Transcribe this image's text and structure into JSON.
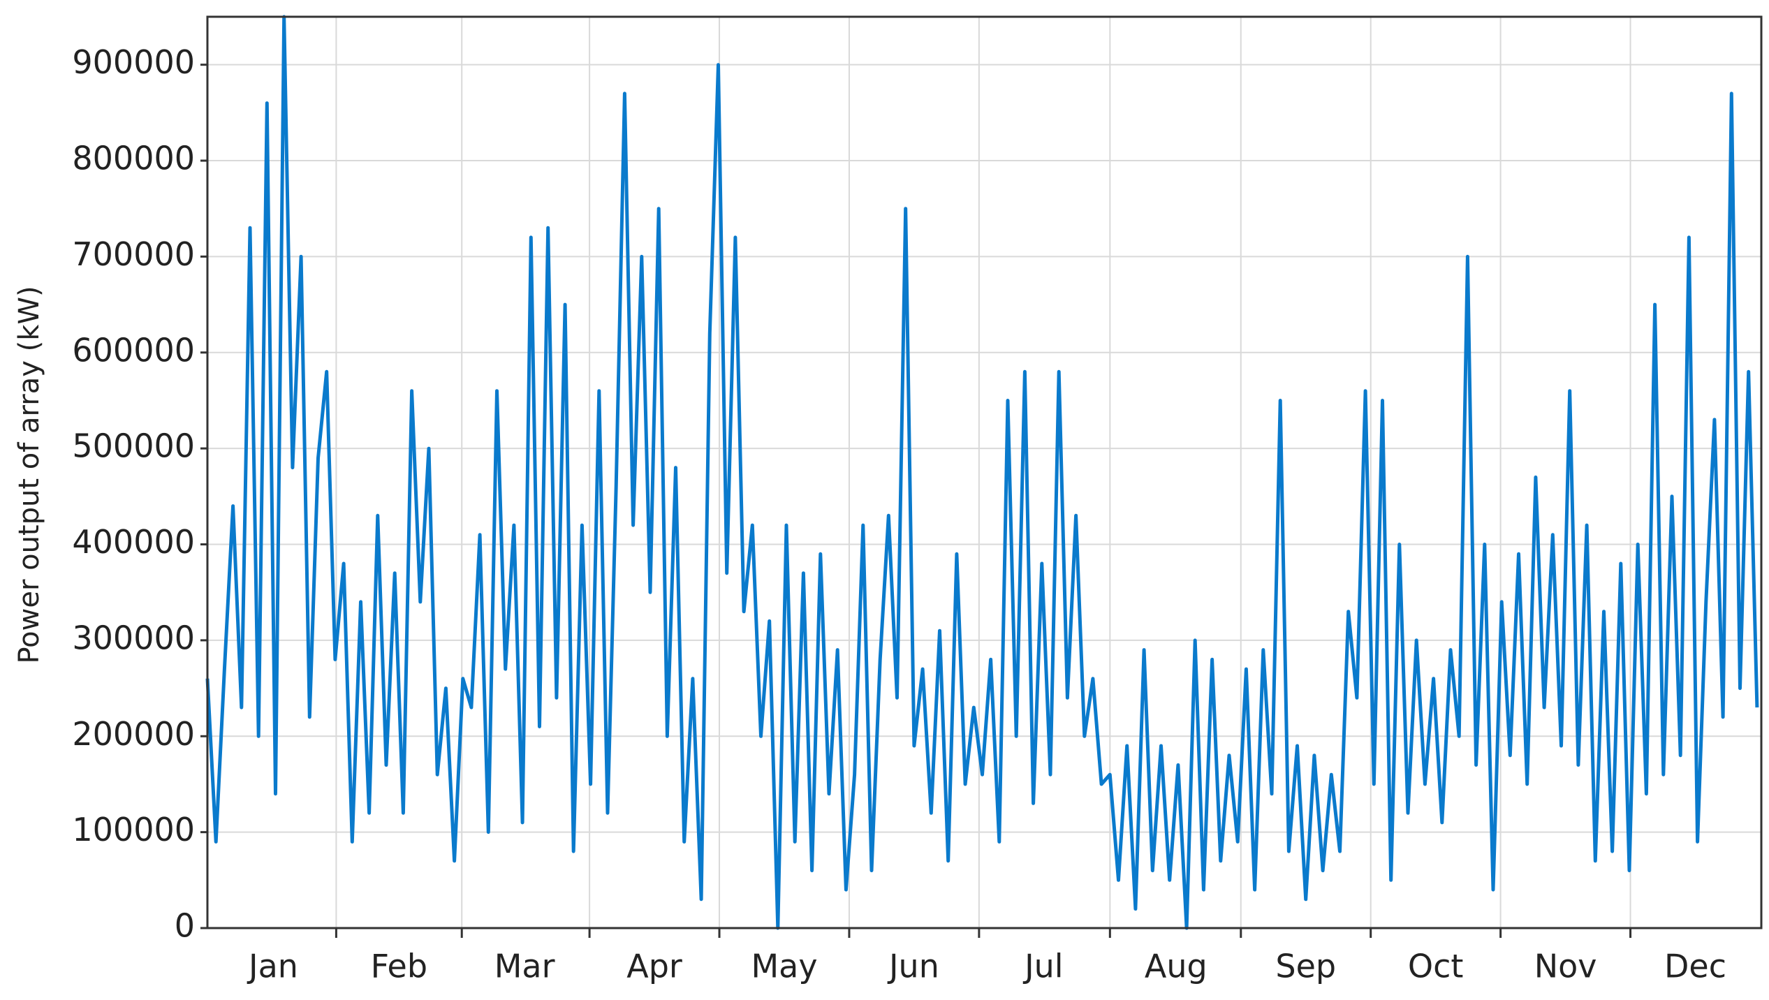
{
  "chart_data": {
    "type": "line",
    "ylabel": "Power output of array (kW)",
    "xlim": [
      0,
      365
    ],
    "xticks": [
      {
        "value": 15.5,
        "label": "Jan"
      },
      {
        "value": 45,
        "label": "Feb"
      },
      {
        "value": 74.5,
        "label": "Mar"
      },
      {
        "value": 105,
        "label": "Apr"
      },
      {
        "value": 135.5,
        "label": "May"
      },
      {
        "value": 166,
        "label": "Jun"
      },
      {
        "value": 196.5,
        "label": "Jul"
      },
      {
        "value": 227.5,
        "label": "Aug"
      },
      {
        "value": 258,
        "label": "Sep"
      },
      {
        "value": 288.5,
        "label": "Oct"
      },
      {
        "value": 319,
        "label": "Nov"
      },
      {
        "value": 349.5,
        "label": "Dec"
      }
    ],
    "ylim": [
      0,
      950000
    ],
    "yticks": [
      0,
      100000,
      200000,
      300000,
      400000,
      500000,
      600000,
      700000,
      800000,
      900000
    ],
    "grid": true,
    "x": [
      0,
      2,
      4,
      6,
      8,
      10,
      12,
      14,
      16,
      18,
      20,
      22,
      24,
      26,
      28,
      30,
      32,
      34,
      36,
      38,
      40,
      42,
      44,
      46,
      48,
      50,
      52,
      54,
      56,
      58,
      60,
      62,
      64,
      66,
      68,
      70,
      72,
      74,
      76,
      78,
      80,
      82,
      84,
      86,
      88,
      90,
      92,
      94,
      96,
      98,
      100,
      102,
      104,
      106,
      108,
      110,
      112,
      114,
      116,
      118,
      120,
      122,
      124,
      126,
      128,
      130,
      132,
      134,
      136,
      138,
      140,
      142,
      144,
      146,
      148,
      150,
      152,
      154,
      156,
      158,
      160,
      162,
      164,
      166,
      168,
      170,
      172,
      174,
      176,
      178,
      180,
      182,
      184,
      186,
      188,
      190,
      192,
      194,
      196,
      198,
      200,
      202,
      204,
      206,
      208,
      210,
      212,
      214,
      216,
      218,
      220,
      222,
      224,
      226,
      228,
      230,
      232,
      234,
      236,
      238,
      240,
      242,
      244,
      246,
      248,
      250,
      252,
      254,
      256,
      258,
      260,
      262,
      264,
      266,
      268,
      270,
      272,
      274,
      276,
      278,
      280,
      282,
      284,
      286,
      288,
      290,
      292,
      294,
      296,
      298,
      300,
      302,
      304,
      306,
      308,
      310,
      312,
      314,
      316,
      318,
      320,
      322,
      324,
      326,
      328,
      330,
      332,
      334,
      336,
      338,
      340,
      342,
      344,
      346,
      348,
      350,
      352,
      354,
      356,
      358,
      360,
      362,
      364
    ],
    "series": [
      {
        "color": "#0a7acc",
        "values": [
          260000,
          90000,
          270000,
          440000,
          230000,
          730000,
          200000,
          860000,
          140000,
          950000,
          480000,
          700000,
          220000,
          490000,
          580000,
          280000,
          380000,
          90000,
          340000,
          120000,
          430000,
          170000,
          370000,
          120000,
          560000,
          340000,
          500000,
          160000,
          250000,
          70000,
          260000,
          230000,
          410000,
          100000,
          560000,
          270000,
          420000,
          110000,
          720000,
          210000,
          730000,
          240000,
          650000,
          80000,
          420000,
          150000,
          560000,
          120000,
          460000,
          870000,
          420000,
          700000,
          350000,
          750000,
          200000,
          480000,
          90000,
          260000,
          30000,
          620000,
          900000,
          370000,
          720000,
          330000,
          420000,
          200000,
          320000,
          0,
          420000,
          90000,
          370000,
          60000,
          390000,
          140000,
          290000,
          40000,
          160000,
          420000,
          60000,
          280000,
          430000,
          240000,
          750000,
          190000,
          270000,
          120000,
          310000,
          70000,
          390000,
          150000,
          230000,
          160000,
          280000,
          90000,
          550000,
          200000,
          580000,
          130000,
          380000,
          160000,
          580000,
          240000,
          430000,
          200000,
          260000,
          150000,
          160000,
          50000,
          190000,
          20000,
          290000,
          60000,
          190000,
          50000,
          170000,
          0,
          300000,
          40000,
          280000,
          70000,
          180000,
          90000,
          270000,
          40000,
          290000,
          140000,
          550000,
          80000,
          190000,
          30000,
          180000,
          60000,
          160000,
          80000,
          330000,
          240000,
          560000,
          150000,
          550000,
          50000,
          400000,
          120000,
          300000,
          150000,
          260000,
          110000,
          290000,
          200000,
          700000,
          170000,
          400000,
          40000,
          340000,
          180000,
          390000,
          150000,
          470000,
          230000,
          410000,
          190000,
          560000,
          170000,
          420000,
          70000,
          330000,
          80000,
          380000,
          60000,
          400000,
          140000,
          650000,
          160000,
          450000,
          180000,
          720000,
          90000,
          340000,
          530000,
          220000,
          870000,
          250000,
          580000,
          230000
        ]
      }
    ]
  }
}
